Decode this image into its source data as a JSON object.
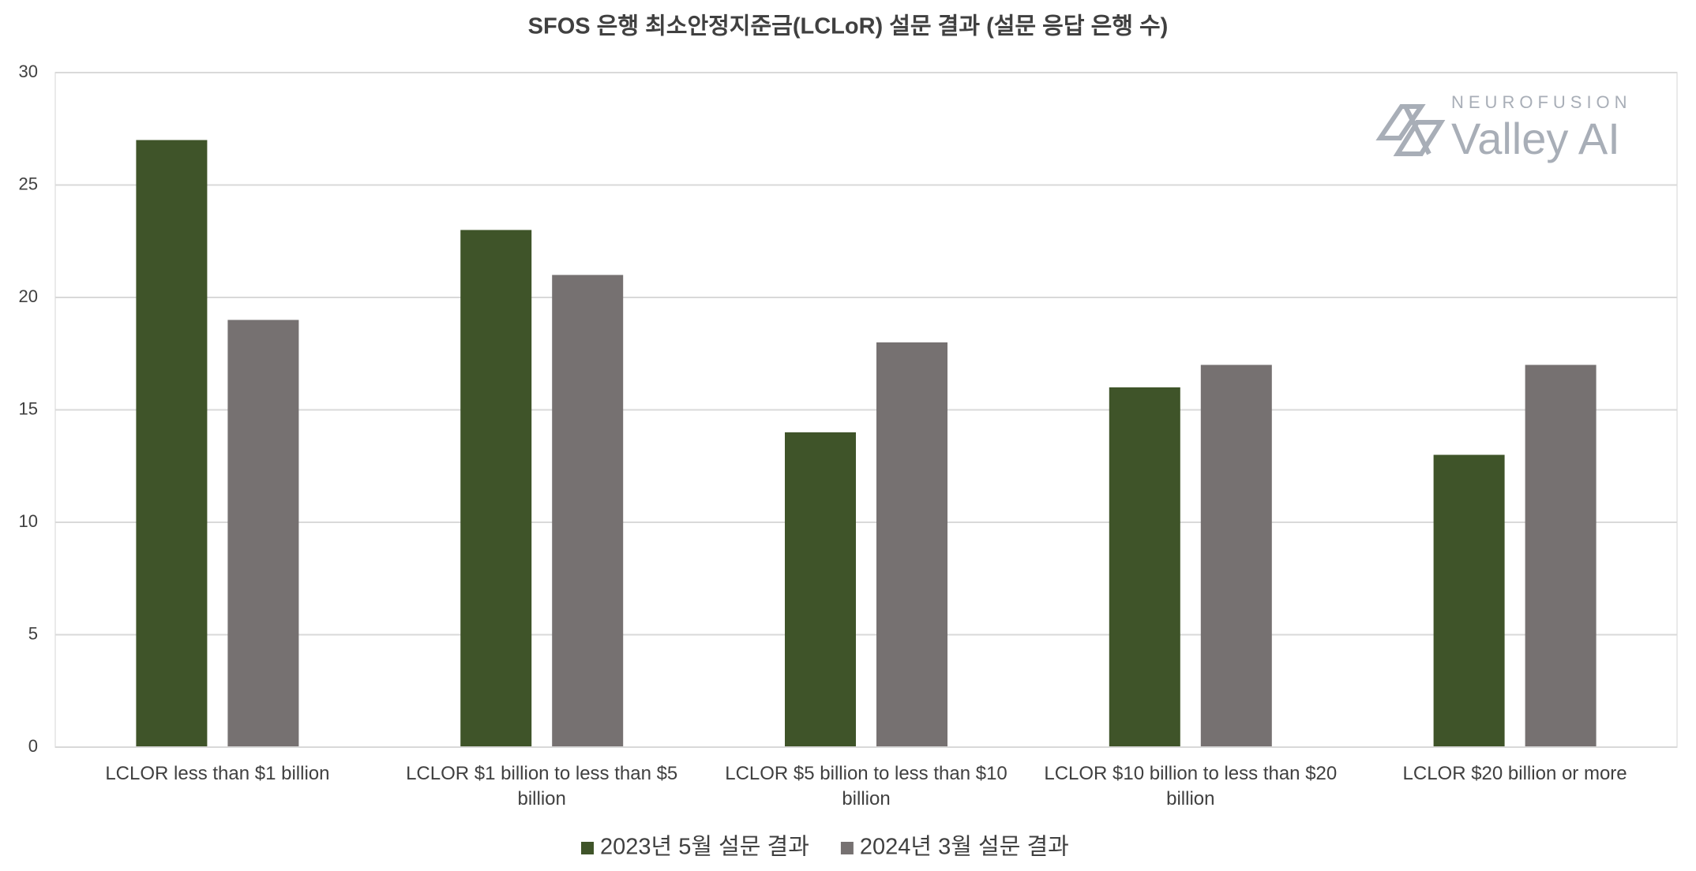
{
  "chart_data": {
    "type": "bar",
    "title": "SFOS 은행 최소안정지준금(LCLoR) 설문 결과 (설문 응답 은행 수)",
    "categories": [
      "LCLOR less than $1 billion",
      "LCLOR $1 billion to less than $5 billion",
      "LCLOR $5 billion to less than $10 billion",
      "LCLOR $10 billion to less than $20 billion",
      "LCLOR $20 billion or more"
    ],
    "series": [
      {
        "name": "2023년 5월 설문 결과",
        "color": "#3f5429",
        "values": [
          27,
          23,
          14,
          16,
          13
        ]
      },
      {
        "name": "2024년 3월 설문 결과",
        "color": "#767171",
        "values": [
          19,
          21,
          18,
          17,
          17
        ]
      }
    ],
    "ylim": [
      0,
      30
    ],
    "yticks": [
      0,
      5,
      10,
      15,
      20,
      25,
      30
    ],
    "grid": true,
    "legend": "bottom",
    "watermark": {
      "brand": "NEUROFUSION",
      "name": "Valley AI"
    }
  }
}
